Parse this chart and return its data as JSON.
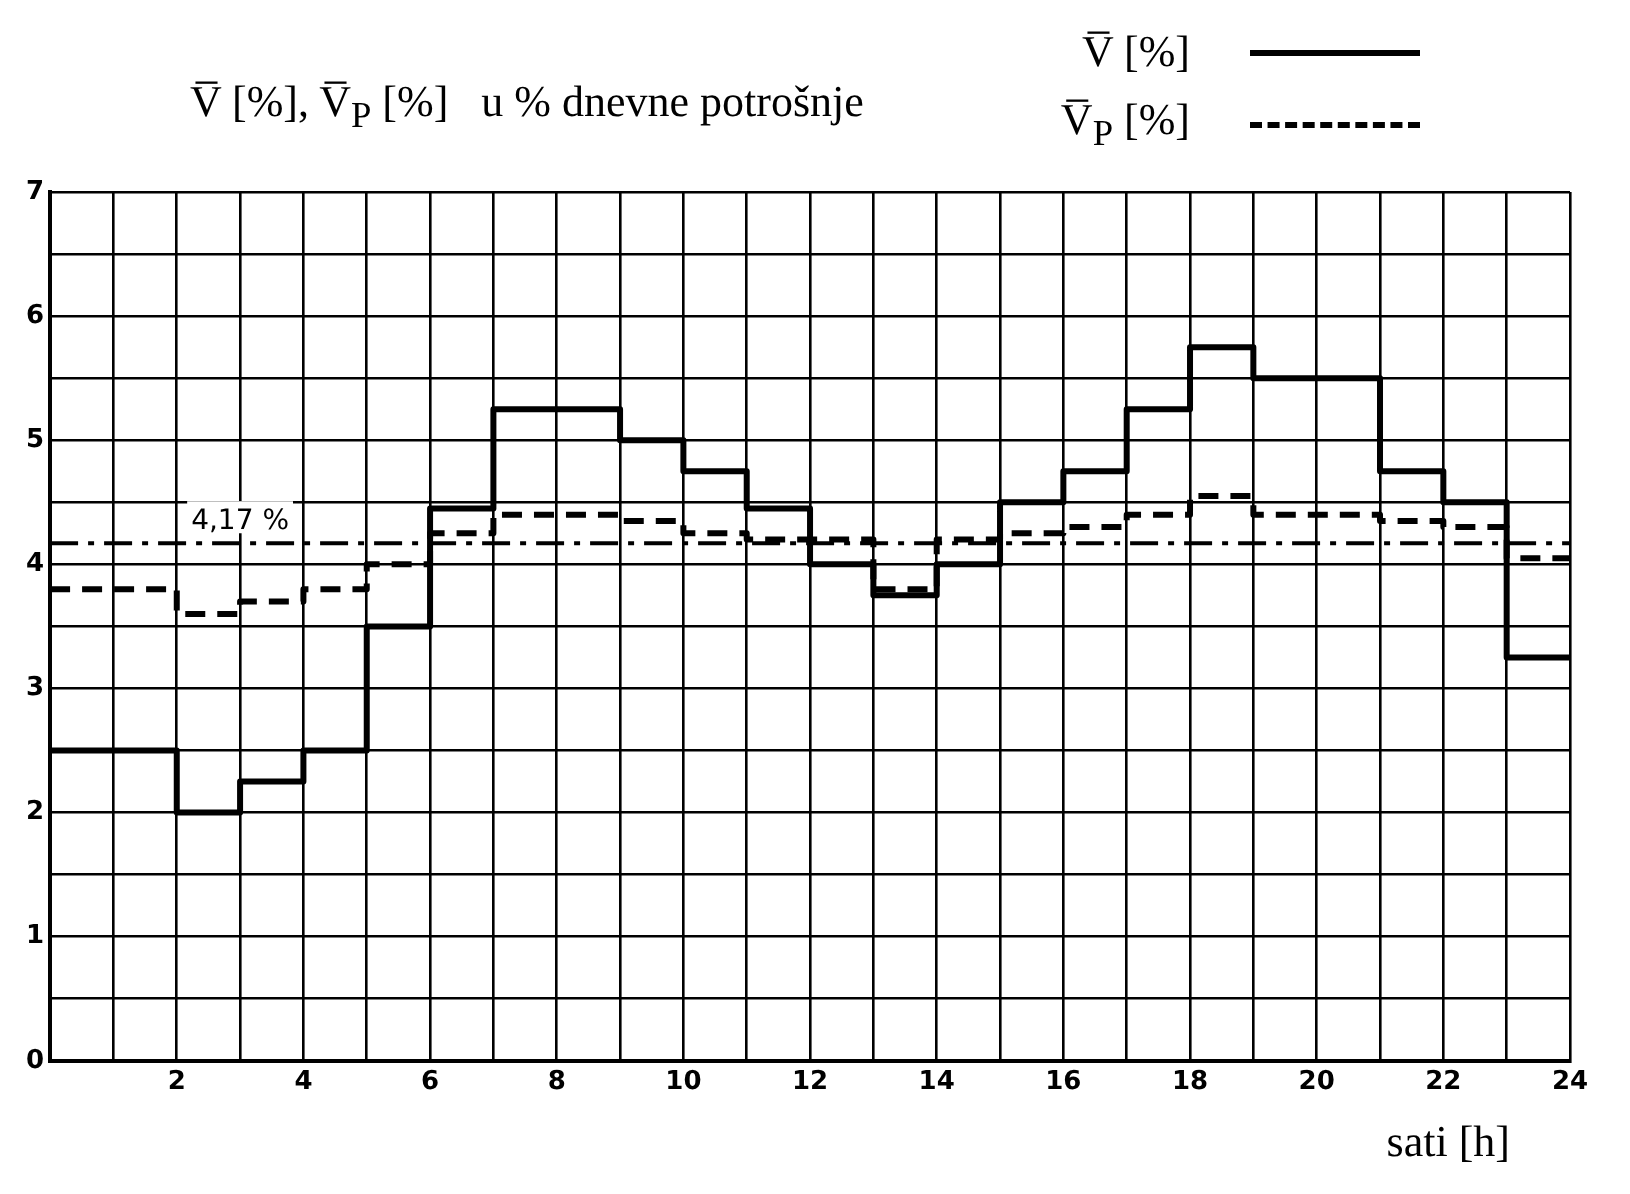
{
  "chart_data": {
    "type": "step",
    "title": "V̅ [%], V̅$_{P}$ [%]   u % dnevne potrošnje",
    "xlabel": "sati [h]",
    "x": [
      0,
      1,
      2,
      3,
      4,
      5,
      6,
      7,
      8,
      9,
      10,
      11,
      12,
      13,
      14,
      15,
      16,
      17,
      18,
      19,
      20,
      21,
      22,
      23,
      24
    ],
    "series": [
      {
        "name": "V̅ [%]",
        "color": "#000000",
        "line_style": "solid",
        "values": [
          2.5,
          2.5,
          2.0,
          2.25,
          2.5,
          3.5,
          4.45,
          5.25,
          5.25,
          5.0,
          4.75,
          4.45,
          4.0,
          3.75,
          4.0,
          4.5,
          4.75,
          5.25,
          5.75,
          5.5,
          5.5,
          4.75,
          4.5,
          3.25,
          3.25
        ]
      },
      {
        "name": "V̅$_{P}$ [%]",
        "color": "#000000",
        "line_style": "dashed",
        "values": [
          3.8,
          3.8,
          3.6,
          3.7,
          3.8,
          4.0,
          4.25,
          4.4,
          4.4,
          4.35,
          4.25,
          4.2,
          4.2,
          3.8,
          4.2,
          4.25,
          4.3,
          4.4,
          4.55,
          4.4,
          4.4,
          4.35,
          4.3,
          4.05,
          4.05
        ]
      }
    ],
    "ref_lines": [
      {
        "axis": "y",
        "value": 4.17,
        "label": "4,17 %",
        "line_style": "dashdot",
        "color": "#000000"
      }
    ],
    "xlim": [
      0,
      24
    ],
    "ylim": [
      0,
      7
    ],
    "xticks": [
      {
        "value": 0,
        "label": null
      },
      {
        "value": 1,
        "label": null
      },
      2,
      {
        "value": 3,
        "label": null
      },
      4,
      {
        "value": 5,
        "label": null
      },
      6,
      {
        "value": 7,
        "label": null
      },
      8,
      {
        "value": 9,
        "label": null
      },
      10,
      {
        "value": 11,
        "label": null
      },
      12,
      {
        "value": 13,
        "label": null
      },
      14,
      {
        "value": 15,
        "label": null
      },
      16,
      {
        "value": 17,
        "label": null
      },
      18,
      {
        "value": 19,
        "label": null
      },
      20,
      {
        "value": 21,
        "label": null
      },
      22,
      {
        "value": 23,
        "label": null
      },
      24
    ],
    "yticks": [
      0,
      {
        "value": 0.5,
        "label": null
      },
      1,
      {
        "value": 1.5,
        "label": null
      },
      2,
      {
        "value": 2.5,
        "label": null
      },
      3,
      {
        "value": 3.5,
        "label": null
      },
      4,
      {
        "value": 4.5,
        "label": null
      },
      5,
      {
        "value": 5.5,
        "label": null
      },
      6,
      {
        "value": 6.5,
        "label": null
      },
      7
    ],
    "grid": true,
    "legend": "top right",
    "marker": "none"
  }
}
